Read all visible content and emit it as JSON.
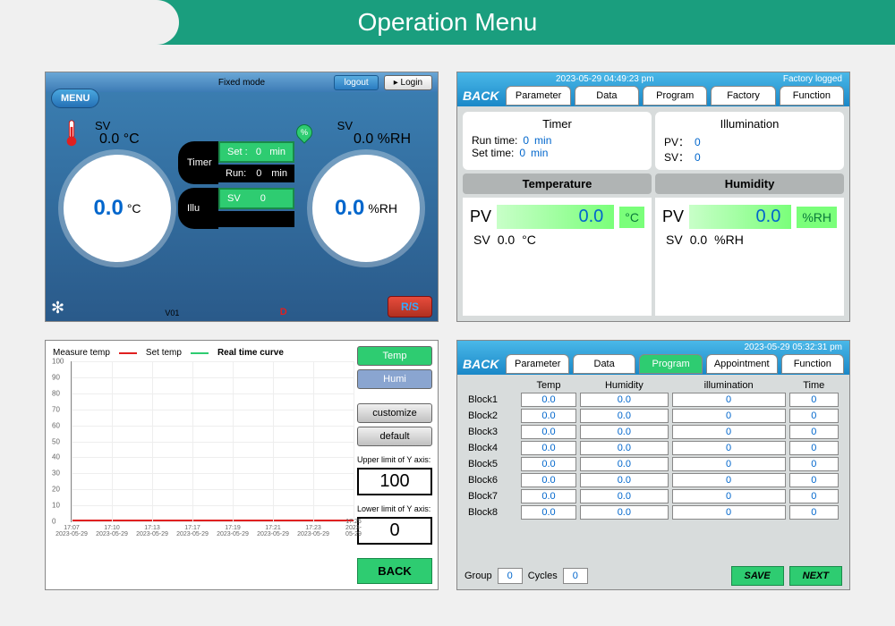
{
  "page_title": "Operation Menu",
  "colors": {
    "brand_green": "#1a9e7e",
    "accent_green": "#2ecc71",
    "blue_dark": "#2a5a8a",
    "value_blue": "#0066cc",
    "red": "#e02020"
  },
  "panel1": {
    "mode_label": "Fixed mode",
    "menu_label": "MENU",
    "logout_btn": "logout",
    "login_btn": "Login",
    "sv_label": "SV",
    "temp_sv": "0.0 °C",
    "humi_sv": "0.0 %RH",
    "gauge_temp": "0.0",
    "gauge_temp_unit": "°C",
    "gauge_humi": "0.0",
    "gauge_humi_unit": "%RH",
    "timer_label": "Timer",
    "timer_set": "Set :",
    "timer_set_val": "0",
    "timer_set_unit": "min",
    "timer_run": "Run:",
    "timer_run_val": "0",
    "timer_run_unit": "min",
    "illu_label": "Illu",
    "illu_sv": "SV",
    "illu_sv_val": "0",
    "version": "V01",
    "d_marker": "D",
    "rs_btn": "R/S"
  },
  "panel2": {
    "back": "BACK",
    "datetime": "2023-05-29  04:49:23 pm",
    "status": "Factory logged",
    "tabs": [
      "Parameter",
      "Data",
      "Program",
      "Factory",
      "Function"
    ],
    "timer": {
      "title": "Timer",
      "run_label": "Run time:",
      "run_val": "0",
      "run_unit": "min",
      "set_label": "Set time:",
      "set_val": "0",
      "set_unit": "min"
    },
    "illum": {
      "title": "Illumination",
      "pv_label": "PV：",
      "pv_val": "0",
      "sv_label": "SV：",
      "sv_val": "0"
    },
    "temp": {
      "header": "Temperature",
      "pv_label": "PV",
      "pv_val": "0.0",
      "pv_unit": "°C",
      "sv_label": "SV",
      "sv_val": "0.0",
      "sv_unit": "°C"
    },
    "humi": {
      "header": "Humidity",
      "pv_label": "PV",
      "pv_val": "0.0",
      "pv_unit": "%RH",
      "sv_label": "SV",
      "sv_val": "0.0",
      "sv_unit": "%RH"
    }
  },
  "panel3": {
    "legend_measure": "Measure temp",
    "legend_set": "Set temp",
    "legend_title": "Real time curve",
    "temp_btn": "Temp",
    "humi_btn": "Humi",
    "customize_btn": "customize",
    "default_btn": "default",
    "upper_label": "Upper limit of Y axis:",
    "upper_val": "100",
    "lower_label": "Lower limit of Y axis:",
    "lower_val": "0",
    "back_btn": "BACK",
    "y_ticks": [
      "100",
      "90",
      "80",
      "70",
      "60",
      "50",
      "40",
      "30",
      "20",
      "10",
      "0"
    ],
    "x_ticks": [
      "17:07\n2023-05-29",
      "17:10\n2023-05-29",
      "17:13\n2023-05-29",
      "17:17\n2023-05-29",
      "17:19\n2023-05-29",
      "17:21\n2023-05-29",
      "17:23\n2023-05-29",
      "17:25\n2023-05-29"
    ],
    "ylim": [
      0,
      100
    ]
  },
  "panel4": {
    "back": "BACK",
    "datetime": "2023-05-29  05:32:31 pm",
    "tabs": [
      "Parameter",
      "Data",
      "Program",
      "Appointment",
      "Function"
    ],
    "active_tab": "Program",
    "columns": [
      "Temp",
      "Humidity",
      "illumination",
      "Time"
    ],
    "rows": [
      {
        "label": "Block1",
        "cells": [
          "0.0",
          "0.0",
          "0",
          "0"
        ]
      },
      {
        "label": "Block2",
        "cells": [
          "0.0",
          "0.0",
          "0",
          "0"
        ]
      },
      {
        "label": "Block3",
        "cells": [
          "0.0",
          "0.0",
          "0",
          "0"
        ]
      },
      {
        "label": "Block4",
        "cells": [
          "0.0",
          "0.0",
          "0",
          "0"
        ]
      },
      {
        "label": "Block5",
        "cells": [
          "0.0",
          "0.0",
          "0",
          "0"
        ]
      },
      {
        "label": "Block6",
        "cells": [
          "0.0",
          "0.0",
          "0",
          "0"
        ]
      },
      {
        "label": "Block7",
        "cells": [
          "0.0",
          "0.0",
          "0",
          "0"
        ]
      },
      {
        "label": "Block8",
        "cells": [
          "0.0",
          "0.0",
          "0",
          "0"
        ]
      }
    ],
    "group_label": "Group",
    "group_val": "0",
    "cycles_label": "Cycles",
    "cycles_val": "0",
    "save_btn": "SAVE",
    "next_btn": "NEXT"
  }
}
